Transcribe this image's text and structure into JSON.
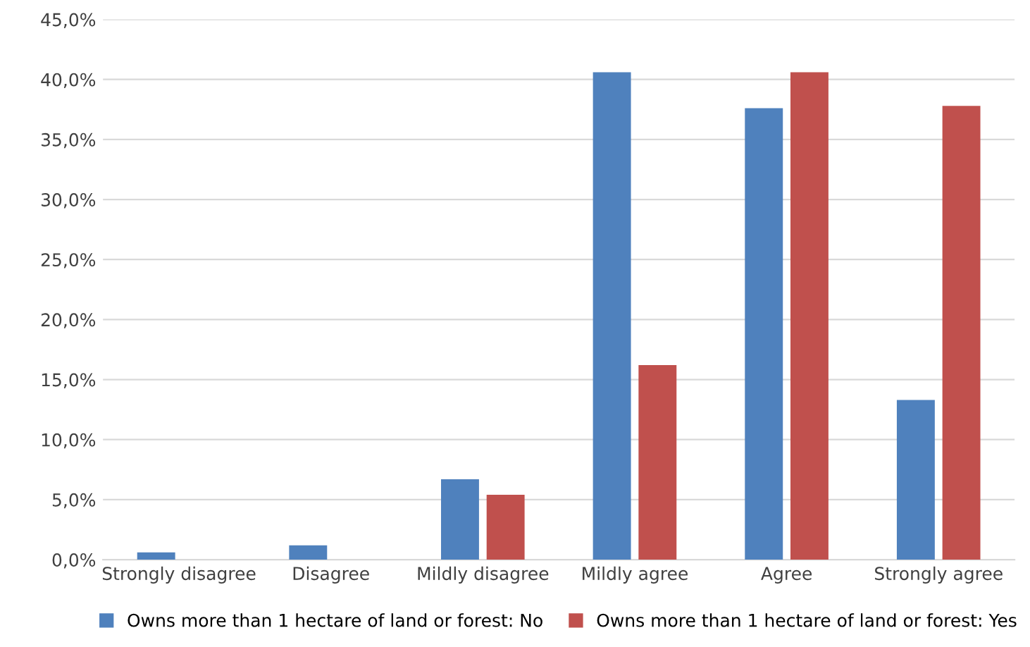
{
  "chart_data": {
    "type": "bar",
    "categories": [
      "Strongly disagree",
      "Disagree",
      "Mildly disagree",
      "Mildly agree",
      "Agree",
      "Strongly agree"
    ],
    "series": [
      {
        "name": "Owns more than 1 hectare of land or forest: No",
        "color": "#4f81bd",
        "values": [
          0.6,
          1.2,
          6.7,
          40.6,
          37.6,
          13.3
        ]
      },
      {
        "name": "Owns more than 1 hectare of land or forest: Yes",
        "color": "#c0504d",
        "values": [
          0,
          0,
          5.4,
          16.2,
          40.6,
          37.8
        ]
      }
    ],
    "ylim": [
      0,
      45
    ],
    "yticks": [
      {
        "value": 0,
        "label": "0,0%"
      },
      {
        "value": 5,
        "label": "5,0%"
      },
      {
        "value": 10,
        "label": "10,0%"
      },
      {
        "value": 15,
        "label": "15,0%"
      },
      {
        "value": 20,
        "label": "20,0%"
      },
      {
        "value": 25,
        "label": "25,0%"
      },
      {
        "value": 30,
        "label": "30,0%"
      },
      {
        "value": 35,
        "label": "35,0%"
      },
      {
        "value": 40,
        "label": "40,0%"
      },
      {
        "value": 45,
        "label": "45,0%"
      }
    ],
    "grid": "y",
    "legend": "bottom"
  }
}
